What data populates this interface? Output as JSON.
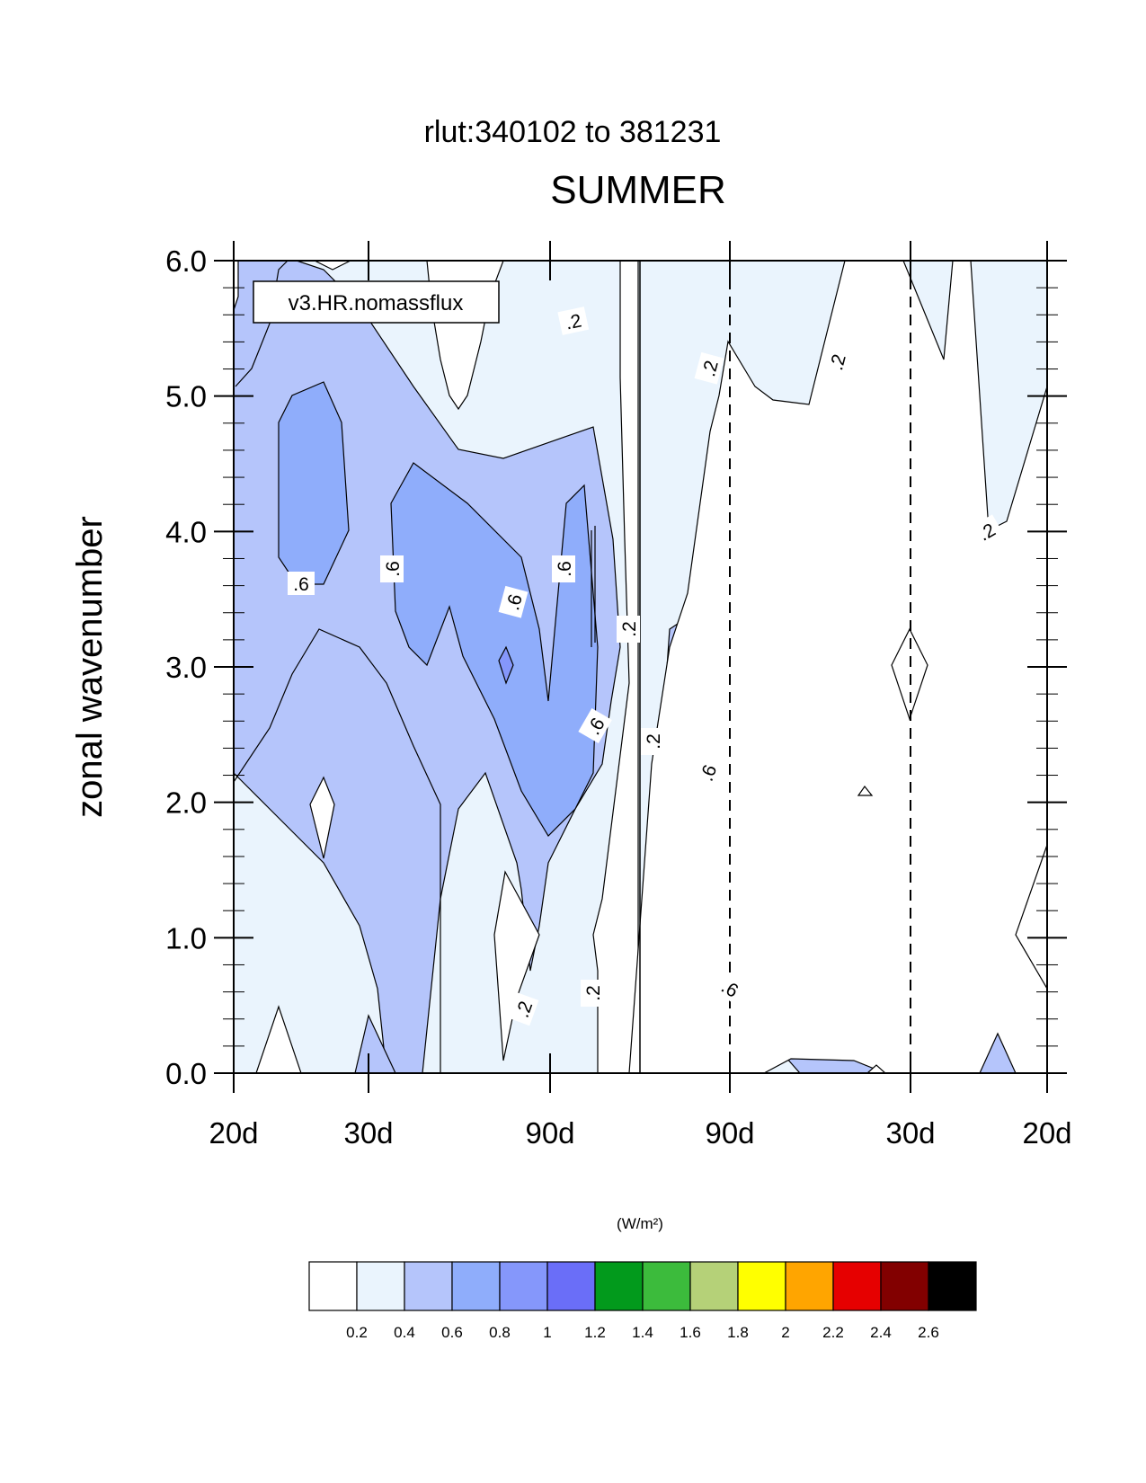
{
  "chart_data": {
    "type": "contour",
    "title": "rlut:340102 to 381231",
    "subtitle": "SUMMER",
    "ylabel": "zonal wavenumber",
    "xlabel": "",
    "units": "(W/m²)",
    "legend_label": "v3.HR.nomassflux",
    "ylim": [
      0.0,
      6.0
    ],
    "yticks": [
      "0.0",
      "1.0",
      "2.0",
      "3.0",
      "4.0",
      "5.0",
      "6.0"
    ],
    "xticks": [
      "20d",
      "30d",
      "90d",
      "90d",
      "30d",
      "20d"
    ],
    "contour_levels": [
      "0.2",
      "0.4",
      "0.6",
      "0.8",
      "1",
      "1.2",
      "1.4",
      "1.6",
      "1.8",
      "2",
      "2.2",
      "2.4",
      "2.6"
    ],
    "colors": [
      "#ffffff",
      "#eaf4fd",
      "#b5c5fb",
      "#8fadfb",
      "#8597fb",
      "#6a6ef8",
      "#029a1c",
      "#3cbb3c",
      "#b5d178",
      "#ffff00",
      "#ffa500",
      "#e60000",
      "#820000",
      "#000000"
    ],
    "contour_labels": [
      ".2",
      ".2",
      ".2",
      ".2",
      ".2",
      ".2",
      ".2",
      ".2",
      ".6",
      ".6",
      ".6",
      ".6",
      ".6",
      ".6",
      ".6",
      ".6"
    ],
    "grid": false,
    "legend_placement": "top-left"
  }
}
